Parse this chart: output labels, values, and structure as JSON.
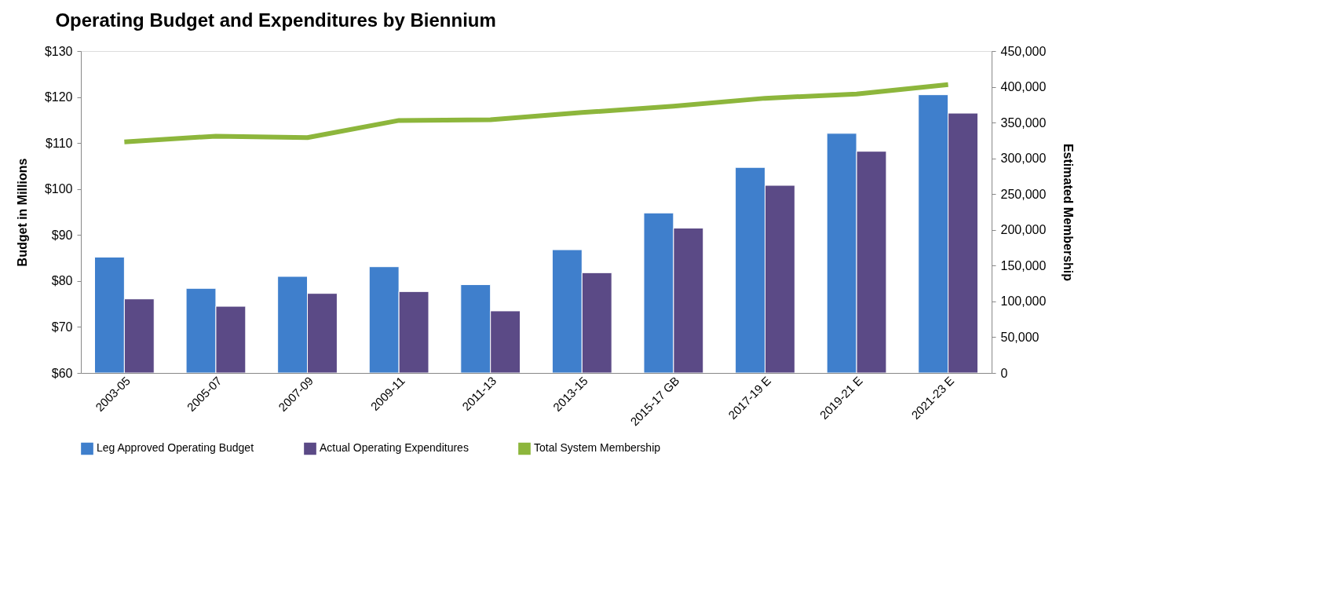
{
  "chart_data": {
    "type": "bar",
    "title": "Operating Budget and Expenditures by Biennium",
    "categories": [
      "2003-05",
      "2005-07",
      "2007-09",
      "2009-11",
      "2011-13",
      "2013-15",
      "2015-17 GB",
      "2017-19 E",
      "2019-21 E",
      "2021-23 E"
    ],
    "ylabel": "Budget in Millions",
    "y2label": "Estimated Membership",
    "series": [
      {
        "name": "Leg Approved Operating Budget",
        "color": "#3f7fcc",
        "values": [
          85.2,
          78.4,
          81.0,
          83.1,
          79.2,
          86.8,
          94.8,
          104.7,
          112.1,
          120.5
        ]
      },
      {
        "name": "Actual Operating Expenditures",
        "color": "#5b4a86",
        "values": [
          76.1,
          74.5,
          77.3,
          77.7,
          73.5,
          81.8,
          91.5,
          100.8,
          108.2,
          116.5
        ]
      },
      {
        "name": "Total System Membership",
        "color": "#8db63c",
        "type": "line",
        "axis": "y2",
        "values": [
          323000,
          331000,
          329000,
          353000,
          354000,
          364000,
          373000,
          384000,
          390000,
          403000
        ]
      }
    ],
    "ylim": [
      60,
      130
    ],
    "yticks": [
      {
        "value": 60,
        "label": "$60"
      },
      {
        "value": 70,
        "label": "$70"
      },
      {
        "value": 80,
        "label": "$80"
      },
      {
        "value": 90,
        "label": "$90"
      },
      {
        "value": 100,
        "label": "$100"
      },
      {
        "value": 110,
        "label": "$110"
      },
      {
        "value": 120,
        "label": "$120"
      },
      {
        "value": 130,
        "label": "$130"
      }
    ],
    "y2lim": [
      0,
      450000
    ],
    "y2ticks": [
      0,
      {
        "value": 50000,
        "label": "50,000"
      },
      {
        "value": 100000,
        "label": "100,000"
      },
      {
        "value": 150000,
        "label": "150,000"
      },
      {
        "value": 200000,
        "label": "200,000"
      },
      {
        "value": 250000,
        "label": "250,000"
      },
      {
        "value": 300000,
        "label": "300,000"
      },
      {
        "value": 350000,
        "label": "350,000"
      },
      {
        "value": 400000,
        "label": "400,000"
      },
      {
        "value": 450000,
        "label": "450,000"
      }
    ],
    "grid": false,
    "legend": "bottom",
    "marker": "none"
  }
}
